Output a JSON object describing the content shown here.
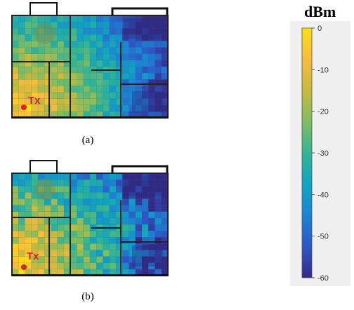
{
  "panels": [
    {
      "id": "a",
      "caption": "(a)",
      "tx_label": "Tx"
    },
    {
      "id": "b",
      "caption": "(b)",
      "tx_label": "Tx"
    }
  ],
  "colorbar": {
    "unit": "dBm",
    "min": -60,
    "max": 0,
    "ticks": [
      "0",
      "-10",
      "-20",
      "-30",
      "-40",
      "-50",
      "-60"
    ],
    "colormap": [
      "#352a87",
      "#2c55c5",
      "#1a85d4",
      "#0fa4c2",
      "#32b595",
      "#7dbd64",
      "#c6bb3d",
      "#f8bc3c",
      "#f9e014"
    ]
  },
  "colors": {
    "tx_marker": "#dd2222",
    "tx_label": "#e02020",
    "wall": "#111111"
  }
}
